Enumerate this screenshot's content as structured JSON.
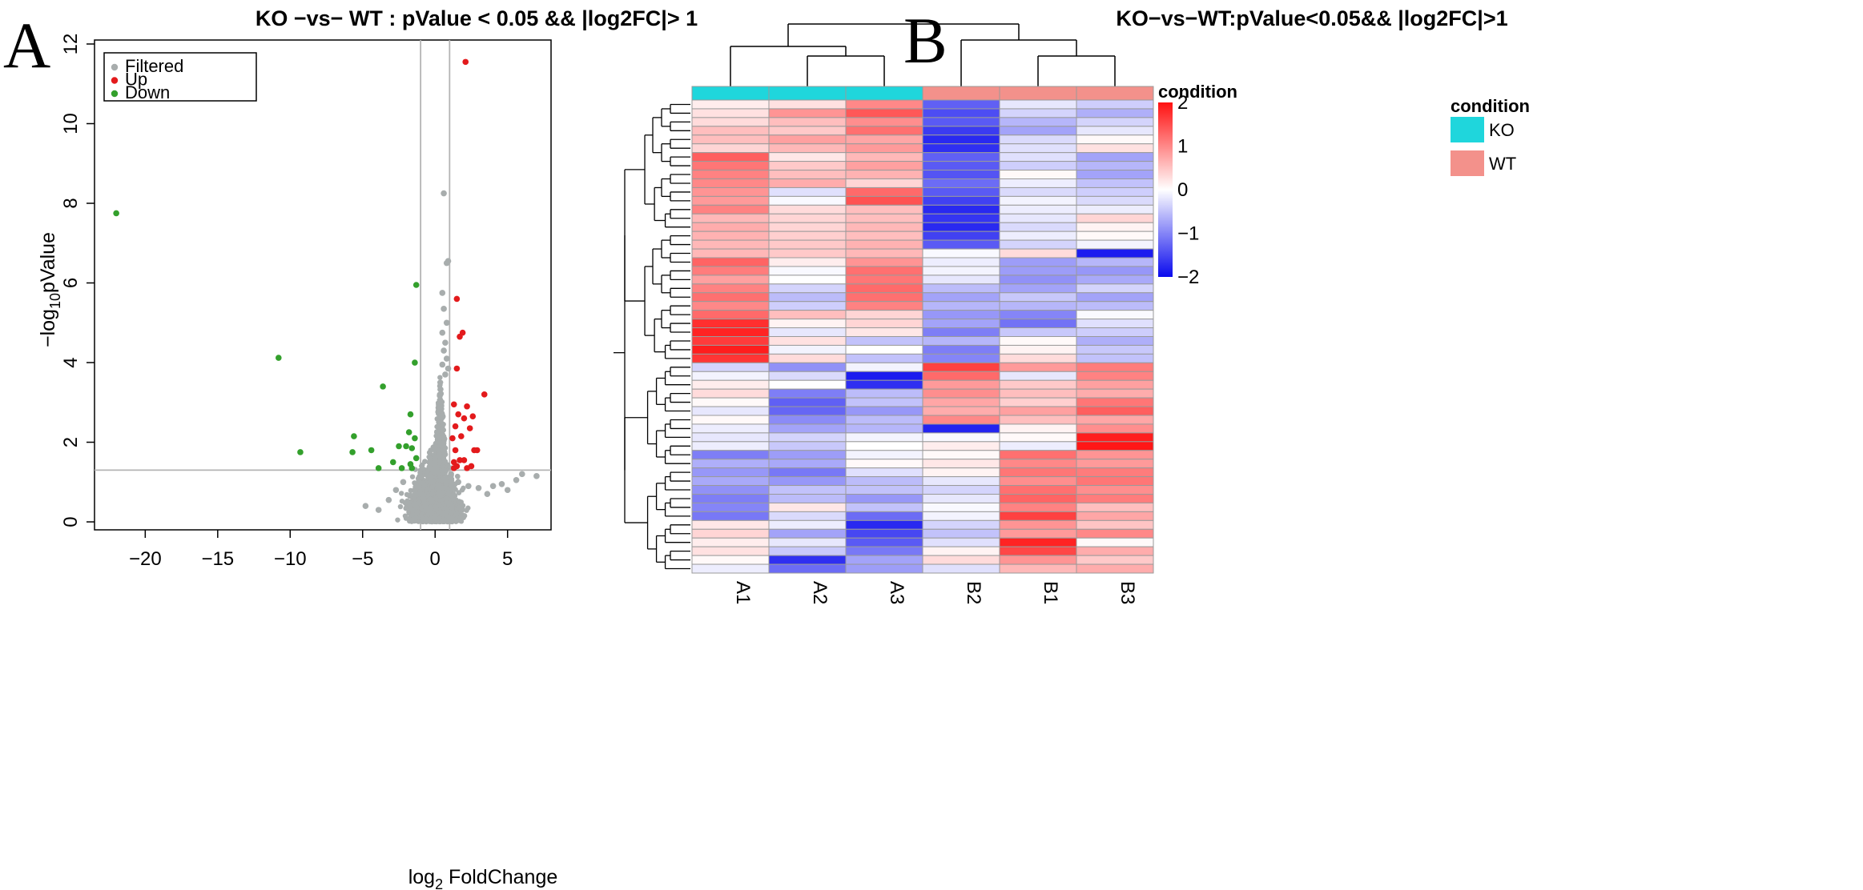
{
  "panels": {
    "left_letter": "A",
    "right_letter": "B"
  },
  "colors": {
    "filtered": "#a8adad",
    "up": "#e31a1c",
    "down": "#33a02c",
    "ko": "#1fd6dc",
    "wt": "#f3918b",
    "heat_low": "#0a0aee",
    "heat_mid": "#ffffff",
    "heat_high": "#ff1111"
  },
  "chart_data": [
    {
      "type": "scatter",
      "title": "KO −vs− WT : pValue < 0.05 && |log2FC|> 1",
      "xlabel_main": "log",
      "xlabel_sub": "2",
      "xlabel_rest": " FoldChange",
      "ylabel_pre": "−log",
      "ylabel_sub": "10",
      "ylabel_post": "pValue",
      "xlim": [
        -23.5,
        8
      ],
      "ylim": [
        -0.2,
        12.1
      ],
      "xticks": [
        -20,
        -15,
        -10,
        -5,
        0,
        5
      ],
      "xtick_labels": [
        "−20",
        "−15",
        "−10",
        "−5",
        "0",
        "5"
      ],
      "yticks": [
        0,
        2,
        4,
        6,
        8,
        10,
        12
      ],
      "ytick_labels": [
        "0",
        "2",
        "4",
        "6",
        "8",
        "10",
        "12"
      ],
      "vlines": [
        -1,
        1
      ],
      "hline": 1.3,
      "legend": [
        "Filtered",
        "Up",
        "Down"
      ],
      "legend_position": "top-left",
      "series": [
        {
          "name": "Up",
          "points": [
            [
              2.1,
              11.55
            ],
            [
              1.5,
              5.6
            ],
            [
              1.9,
              4.75
            ],
            [
              1.7,
              4.65
            ],
            [
              1.5,
              3.85
            ],
            [
              3.4,
              3.2
            ],
            [
              1.3,
              2.95
            ],
            [
              2.2,
              2.9
            ],
            [
              1.6,
              2.7
            ],
            [
              2.6,
              2.65
            ],
            [
              2.0,
              2.6
            ],
            [
              2.4,
              2.35
            ],
            [
              1.4,
              2.4
            ],
            [
              1.8,
              2.15
            ],
            [
              2.9,
              1.8
            ],
            [
              2.7,
              1.8
            ],
            [
              1.4,
              1.8
            ],
            [
              2.0,
              1.55
            ],
            [
              1.7,
              1.55
            ],
            [
              2.5,
              1.4
            ],
            [
              1.5,
              1.4
            ],
            [
              2.2,
              1.35
            ],
            [
              1.3,
              1.5
            ],
            [
              1.2,
              2.1
            ],
            [
              1.3,
              1.35
            ]
          ]
        },
        {
          "name": "Down",
          "points": [
            [
              -22.0,
              7.75
            ],
            [
              -10.8,
              4.12
            ],
            [
              -9.3,
              1.75
            ],
            [
              -5.6,
              2.15
            ],
            [
              -5.7,
              1.75
            ],
            [
              -4.4,
              1.8
            ],
            [
              -3.6,
              3.4
            ],
            [
              -1.3,
              5.95
            ],
            [
              -1.4,
              4.0
            ],
            [
              -1.7,
              2.7
            ],
            [
              -1.8,
              2.25
            ],
            [
              -2.5,
              1.9
            ],
            [
              -2.0,
              1.9
            ],
            [
              -1.4,
              2.1
            ],
            [
              -1.6,
              1.85
            ],
            [
              -1.3,
              1.6
            ],
            [
              -2.9,
              1.5
            ],
            [
              -3.9,
              1.35
            ],
            [
              -1.7,
              1.45
            ],
            [
              -1.6,
              1.35
            ],
            [
              -2.3,
              1.35
            ]
          ]
        },
        {
          "name": "Filtered",
          "points": [
            [
              0.6,
              8.25
            ],
            [
              0.9,
              6.55
            ],
            [
              0.8,
              6.5
            ],
            [
              0.5,
              5.75
            ],
            [
              0.6,
              5.35
            ],
            [
              0.8,
              5.0
            ],
            [
              0.5,
              4.75
            ],
            [
              0.7,
              4.5
            ],
            [
              0.6,
              4.3
            ],
            [
              0.8,
              4.1
            ],
            [
              0.9,
              3.85
            ],
            [
              0.5,
              3.95
            ],
            [
              0.7,
              3.7
            ],
            [
              1.1,
              1.2
            ],
            [
              1.6,
              1.0
            ],
            [
              2.3,
              0.9
            ],
            [
              3.0,
              0.85
            ],
            [
              4.0,
              0.9
            ],
            [
              5.0,
              0.8
            ],
            [
              5.6,
              1.05
            ],
            [
              6.0,
              1.2
            ],
            [
              7.0,
              1.15
            ],
            [
              4.6,
              0.95
            ],
            [
              3.6,
              0.7
            ],
            [
              -4.8,
              0.4
            ],
            [
              -3.9,
              0.3
            ],
            [
              -3.2,
              0.55
            ],
            [
              -2.7,
              0.8
            ],
            [
              -2.2,
              1.0
            ]
          ]
        }
      ],
      "filtered_cloud": {
        "description": "dense non-significant gene cloud",
        "x_center": 0,
        "x_spread": 1.25,
        "y_max": 1.3,
        "count": 2600
      }
    },
    {
      "type": "heatmap",
      "title": "KO−vs−WT:pValue<0.05&& |log2FC|>1",
      "columns": [
        "A1",
        "A2",
        "A3",
        "B2",
        "B1",
        "B3"
      ],
      "column_conditions": [
        "KO",
        "KO",
        "KO",
        "WT",
        "WT",
        "WT"
      ],
      "condition_legend_title": "condition",
      "condition_legend": [
        "KO",
        "WT"
      ],
      "colorbar_title": "condition",
      "colorbar_range": [
        -2,
        2
      ],
      "colorbar_ticks": [
        2,
        1,
        0,
        -1,
        -2
      ],
      "colorbar_tick_labels": [
        "2",
        "1",
        "0",
        "−1",
        "−2"
      ],
      "rows": 54,
      "values": [
        [
          0.15,
          0.25,
          1.0,
          -1.3,
          -0.2,
          -0.4
        ],
        [
          0.25,
          0.9,
          1.4,
          -1.45,
          -0.35,
          -0.65
        ],
        [
          0.3,
          0.55,
          0.95,
          -1.35,
          -0.6,
          -0.35
        ],
        [
          0.55,
          0.45,
          1.2,
          -1.6,
          -0.75,
          -0.2
        ],
        [
          0.55,
          0.8,
          0.75,
          -1.75,
          -0.3,
          0.05
        ],
        [
          0.35,
          0.6,
          0.85,
          -1.7,
          -0.25,
          0.25
        ],
        [
          1.35,
          0.2,
          0.6,
          -1.3,
          -0.25,
          -0.75
        ],
        [
          1.15,
          0.45,
          0.8,
          -1.35,
          -0.4,
          -0.6
        ],
        [
          1.05,
          0.55,
          0.65,
          -1.4,
          0.05,
          -0.75
        ],
        [
          1.0,
          0.7,
          0.35,
          -1.2,
          -0.15,
          -0.5
        ],
        [
          0.9,
          -0.25,
          1.25,
          -1.35,
          -0.3,
          -0.4
        ],
        [
          0.85,
          -0.05,
          1.45,
          -1.55,
          -0.1,
          -0.3
        ],
        [
          1.05,
          0.3,
          0.55,
          -1.75,
          -0.15,
          -0.15
        ],
        [
          0.6,
          0.35,
          0.55,
          -1.65,
          -0.2,
          0.35
        ],
        [
          0.7,
          0.35,
          0.6,
          -1.75,
          -0.3,
          0.1
        ],
        [
          0.65,
          0.4,
          0.55,
          -1.55,
          -0.15,
          0.05
        ],
        [
          0.6,
          0.45,
          0.65,
          -1.35,
          -0.35,
          -0.1
        ],
        [
          0.6,
          0.45,
          0.6,
          -0.05,
          0.3,
          -1.85
        ],
        [
          1.3,
          0.15,
          0.9,
          -0.15,
          -0.8,
          -0.6
        ],
        [
          1.1,
          -0.05,
          1.2,
          -0.1,
          -0.8,
          -0.85
        ],
        [
          0.8,
          0.0,
          1.15,
          -0.2,
          -0.9,
          -0.7
        ],
        [
          1.05,
          -0.35,
          1.25,
          -0.55,
          -0.75,
          -0.35
        ],
        [
          1.2,
          -0.55,
          1.2,
          -0.75,
          -0.45,
          -0.75
        ],
        [
          1.0,
          -0.4,
          1.05,
          -0.6,
          -0.6,
          -0.55
        ],
        [
          1.25,
          0.55,
          0.35,
          -0.85,
          -1.0,
          -0.05
        ],
        [
          1.75,
          0.1,
          0.35,
          -0.75,
          -1.15,
          -0.25
        ],
        [
          1.85,
          -0.2,
          0.2,
          -1.05,
          -0.45,
          -0.4
        ],
        [
          1.65,
          0.25,
          -0.5,
          -0.6,
          0.05,
          -0.65
        ],
        [
          1.9,
          -0.1,
          0.0,
          -1.05,
          0.1,
          -0.45
        ],
        [
          1.7,
          0.3,
          -0.5,
          -1.0,
          0.3,
          -0.5
        ],
        [
          -0.35,
          -0.9,
          -0.1,
          1.6,
          0.85,
          1.1
        ],
        [
          -0.1,
          -0.3,
          -1.85,
          1.25,
          -0.2,
          1.05
        ],
        [
          0.15,
          0.0,
          -1.7,
          0.85,
          0.45,
          0.8
        ],
        [
          0.3,
          -1.05,
          -0.55,
          0.95,
          0.55,
          0.7
        ],
        [
          0.05,
          -1.3,
          -0.5,
          0.75,
          0.4,
          1.15
        ],
        [
          -0.2,
          -1.25,
          -0.85,
          0.7,
          0.8,
          1.35
        ],
        [
          0.05,
          -0.95,
          -0.55,
          1.0,
          0.55,
          0.75
        ],
        [
          -0.15,
          -0.75,
          -0.6,
          -1.8,
          0.1,
          0.95
        ],
        [
          -0.2,
          -0.35,
          -0.1,
          -0.05,
          0.05,
          1.9
        ],
        [
          -0.15,
          -0.45,
          0.0,
          0.15,
          -0.15,
          1.95
        ],
        [
          -1.05,
          -0.8,
          -0.1,
          0.05,
          1.2,
          0.9
        ],
        [
          -0.65,
          -0.7,
          0.05,
          0.2,
          1.0,
          0.85
        ],
        [
          -0.85,
          -1.1,
          -0.25,
          0.1,
          1.15,
          1.1
        ],
        [
          -0.7,
          -0.85,
          -0.55,
          -0.2,
          0.95,
          1.15
        ],
        [
          -0.9,
          -0.5,
          -0.5,
          -0.35,
          1.2,
          0.95
        ],
        [
          -1.05,
          -0.55,
          -0.85,
          -0.2,
          1.3,
          1.1
        ],
        [
          -1.0,
          0.2,
          -0.5,
          -0.05,
          1.05,
          0.55
        ],
        [
          -1.1,
          -0.3,
          -1.2,
          -0.1,
          1.6,
          0.75
        ],
        [
          0.2,
          -0.15,
          -1.75,
          -0.35,
          0.9,
          0.5
        ],
        [
          0.35,
          -0.75,
          -1.5,
          -0.5,
          0.85,
          1.0
        ],
        [
          0.15,
          -0.2,
          -1.35,
          -0.25,
          1.85,
          0.05
        ],
        [
          0.25,
          -0.45,
          -1.1,
          0.1,
          1.55,
          0.7
        ],
        [
          0.05,
          -1.7,
          -0.75,
          0.3,
          0.9,
          0.45
        ],
        [
          -0.15,
          -1.2,
          -0.8,
          -0.25,
          0.6,
          0.7
        ]
      ]
    }
  ]
}
